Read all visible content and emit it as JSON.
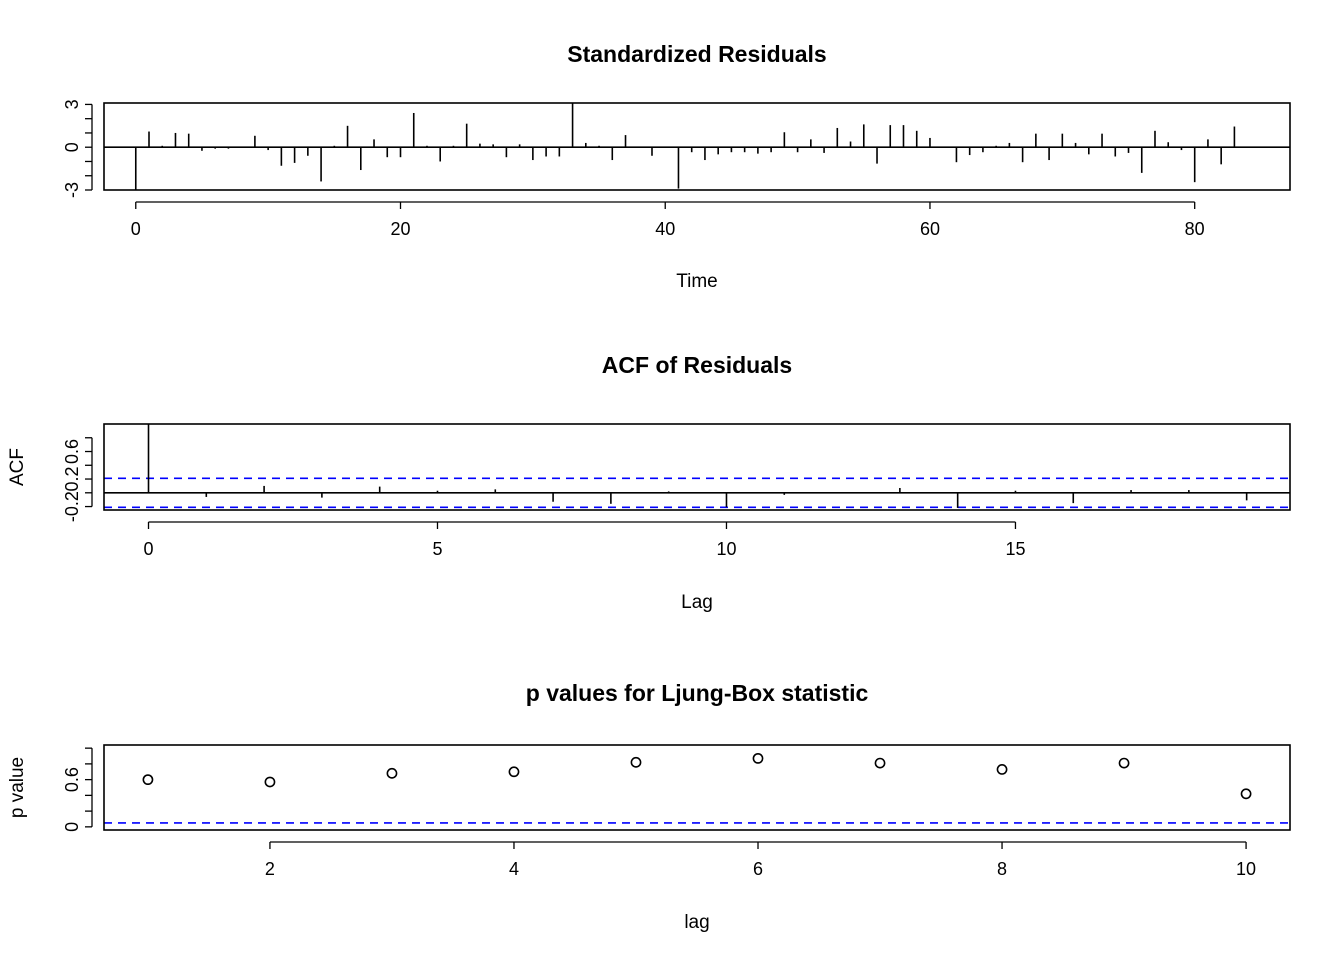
{
  "chart_data": [
    {
      "type": "bar",
      "title": "Standardized Residuals",
      "xlabel": "Time",
      "ylabel": "",
      "xlim": [
        -2.4,
        87.2
      ],
      "ylim": [
        -3.0,
        3.1
      ],
      "xticks": [
        0,
        20,
        40,
        60,
        80
      ],
      "yticks": [
        -3,
        0,
        3
      ],
      "yticks_minor": [
        -2,
        -1,
        1,
        2
      ],
      "reference_line": 0,
      "x": [
        0,
        1,
        2,
        3,
        4,
        5,
        6,
        7,
        8,
        9,
        10,
        11,
        12,
        13,
        14,
        15,
        16,
        17,
        18,
        19,
        20,
        21,
        22,
        23,
        24,
        25,
        26,
        27,
        28,
        29,
        30,
        31,
        32,
        33,
        34,
        35,
        36,
        37,
        38,
        39,
        40,
        41,
        42,
        43,
        44,
        45,
        46,
        47,
        48,
        49,
        50,
        51,
        52,
        53,
        54,
        55,
        56,
        57,
        58,
        59,
        60,
        61,
        62,
        63,
        64,
        65,
        66,
        67,
        68,
        69,
        70,
        71,
        72,
        73,
        74,
        75,
        76,
        77,
        78,
        79,
        80,
        81,
        82,
        83,
        84
      ],
      "values": [
        -3.0,
        1.1,
        0.1,
        1.0,
        0.95,
        -0.25,
        -0.1,
        -0.1,
        0.0,
        0.8,
        -0.2,
        -1.3,
        -1.1,
        -0.6,
        -2.4,
        0.1,
        1.5,
        -1.6,
        0.55,
        -0.7,
        -0.7,
        2.4,
        0.1,
        -1.0,
        0.1,
        1.65,
        0.25,
        0.2,
        -0.7,
        0.2,
        -0.9,
        -0.65,
        -0.65,
        3.1,
        0.3,
        0.1,
        -0.9,
        0.85,
        0.0,
        -0.6,
        0.05,
        -2.9,
        -0.35,
        -0.9,
        -0.5,
        -0.35,
        -0.35,
        -0.45,
        -0.35,
        1.05,
        -0.35,
        0.55,
        -0.4,
        1.35,
        0.4,
        1.6,
        -1.15,
        1.55,
        1.55,
        1.15,
        0.65,
        0.0,
        -1.05,
        -0.55,
        -0.35,
        0.1,
        0.3,
        -1.05,
        0.95,
        -0.9,
        0.95,
        0.3,
        -0.5,
        0.95,
        -0.65,
        -0.4,
        -1.8,
        1.15,
        0.35,
        -0.2,
        -2.45,
        0.55,
        -1.2,
        1.45,
        0.05
      ]
    },
    {
      "type": "bar",
      "title": "ACF of Residuals",
      "xlabel": "Lag",
      "ylabel": "ACF",
      "xlim": [
        -0.77,
        19.75
      ],
      "ylim": [
        -0.25,
        1.0
      ],
      "xticks": [
        0,
        5,
        10,
        15
      ],
      "yticks": [
        -0.2,
        0.2,
        0.6
      ],
      "yticks_minor": [
        0.0,
        0.4,
        0.8
      ],
      "reference_line": 0,
      "confidence_bounds": [
        0.2108,
        -0.2108
      ],
      "x": [
        0,
        1,
        2,
        3,
        4,
        5,
        6,
        7,
        8,
        9,
        10,
        11,
        12,
        13,
        14,
        15,
        16,
        17,
        18,
        19
      ],
      "values": [
        1.0,
        -0.06,
        0.1,
        -0.07,
        0.09,
        0.03,
        0.05,
        -0.13,
        -0.16,
        0.02,
        -0.21,
        -0.03,
        0.01,
        0.07,
        -0.22,
        0.03,
        -0.15,
        0.04,
        0.04,
        -0.11
      ]
    },
    {
      "type": "scatter",
      "title": "p values for Ljung-Box statistic",
      "xlabel": "lag",
      "ylabel": "p value",
      "xlim": [
        0.64,
        10.36
      ],
      "ylim": [
        -0.04,
        1.04
      ],
      "xticks": [
        2,
        4,
        6,
        8,
        10
      ],
      "yticks": [
        0.0,
        0.6
      ],
      "yticks_minor": [
        0.2,
        0.4,
        0.8,
        1.0
      ],
      "reference_line": 0.05,
      "x": [
        1,
        2,
        3,
        4,
        5,
        6,
        7,
        8,
        9,
        10
      ],
      "values": [
        0.6,
        0.57,
        0.68,
        0.7,
        0.82,
        0.87,
        0.81,
        0.73,
        0.81,
        0.42
      ]
    }
  ]
}
